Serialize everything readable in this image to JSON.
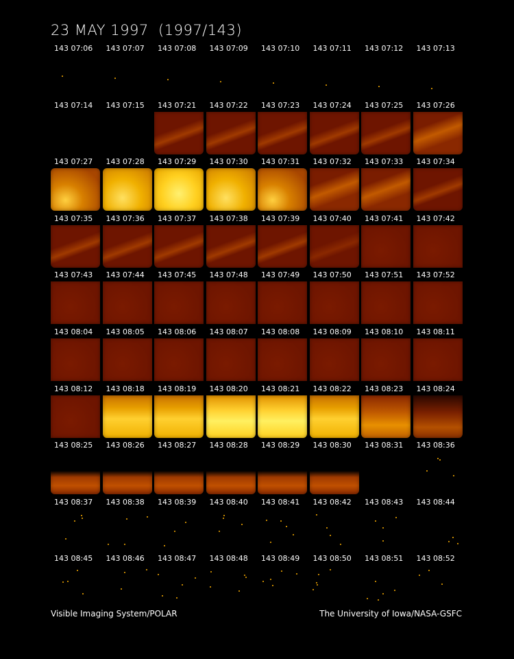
{
  "title": "23 MAY 1997  (1997/143)",
  "footer": {
    "left": "Visible Imaging System/POLAR",
    "right": "The University of Iowa/NASA-GSFC"
  },
  "colors": {
    "dark": "#6e1500",
    "mid": "#b34a00",
    "bright": "#f2b400",
    "very_bright": "#ffe030",
    "dot": "#ffb000"
  },
  "frames": [
    {
      "label": "143 07:06",
      "type": "dot"
    },
    {
      "label": "143 07:07",
      "type": "dot"
    },
    {
      "label": "143 07:08",
      "type": "dot"
    },
    {
      "label": "143 07:09",
      "type": "dot"
    },
    {
      "label": "143 07:10",
      "type": "dot"
    },
    {
      "label": "143 07:11",
      "type": "dot"
    },
    {
      "label": "143 07:12",
      "type": "dot"
    },
    {
      "label": "143 07:13",
      "type": "dot"
    },
    {
      "label": "143 07:14",
      "type": "empty"
    },
    {
      "label": "143 07:15",
      "type": "empty"
    },
    {
      "label": "143 07:21",
      "type": "arc-dim"
    },
    {
      "label": "143 07:22",
      "type": "arc-dim"
    },
    {
      "label": "143 07:23",
      "type": "arc-dim"
    },
    {
      "label": "143 07:24",
      "type": "arc-dim"
    },
    {
      "label": "143 07:25",
      "type": "arc-dim"
    },
    {
      "label": "143 07:26",
      "type": "arc-mid"
    },
    {
      "label": "143 07:27",
      "type": "bright-orange"
    },
    {
      "label": "143 07:28",
      "type": "bright"
    },
    {
      "label": "143 07:29",
      "type": "very-bright"
    },
    {
      "label": "143 07:30",
      "type": "bright"
    },
    {
      "label": "143 07:31",
      "type": "bright-orange"
    },
    {
      "label": "143 07:32",
      "type": "arc-mid"
    },
    {
      "label": "143 07:33",
      "type": "arc-mid"
    },
    {
      "label": "143 07:34",
      "type": "arc-dim"
    },
    {
      "label": "143 07:35",
      "type": "arc-dim"
    },
    {
      "label": "143 07:36",
      "type": "arc-dim"
    },
    {
      "label": "143 07:37",
      "type": "arc-dim"
    },
    {
      "label": "143 07:38",
      "type": "arc-dim"
    },
    {
      "label": "143 07:39",
      "type": "arc-dim"
    },
    {
      "label": "143 07:40",
      "type": "arc-faint"
    },
    {
      "label": "143 07:41",
      "type": "dark"
    },
    {
      "label": "143 07:42",
      "type": "dark"
    },
    {
      "label": "143 07:43",
      "type": "dark"
    },
    {
      "label": "143 07:44",
      "type": "dark"
    },
    {
      "label": "143 07:45",
      "type": "dark"
    },
    {
      "label": "143 07:48",
      "type": "dark"
    },
    {
      "label": "143 07:49",
      "type": "dark"
    },
    {
      "label": "143 07:50",
      "type": "dark"
    },
    {
      "label": "143 07:51",
      "type": "dark"
    },
    {
      "label": "143 07:52",
      "type": "dark"
    },
    {
      "label": "143 08:04",
      "type": "dark"
    },
    {
      "label": "143 08:05",
      "type": "dark"
    },
    {
      "label": "143 08:06",
      "type": "dark"
    },
    {
      "label": "143 08:07",
      "type": "dark"
    },
    {
      "label": "143 08:08",
      "type": "dark"
    },
    {
      "label": "143 08:09",
      "type": "dark"
    },
    {
      "label": "143 08:10",
      "type": "dark"
    },
    {
      "label": "143 08:11",
      "type": "dark"
    },
    {
      "label": "143 08:12",
      "type": "dark"
    },
    {
      "label": "143 08:18",
      "type": "band-bright"
    },
    {
      "label": "143 08:19",
      "type": "band-bright"
    },
    {
      "label": "143 08:20",
      "type": "band-very"
    },
    {
      "label": "143 08:21",
      "type": "band-very"
    },
    {
      "label": "143 08:22",
      "type": "band-bright"
    },
    {
      "label": "143 08:23",
      "type": "band-mid"
    },
    {
      "label": "143 08:24",
      "type": "band-dark"
    },
    {
      "label": "143 08:25",
      "type": "limb"
    },
    {
      "label": "143 08:26",
      "type": "limb"
    },
    {
      "label": "143 08:27",
      "type": "limb"
    },
    {
      "label": "143 08:28",
      "type": "limb"
    },
    {
      "label": "143 08:29",
      "type": "limb"
    },
    {
      "label": "143 08:30",
      "type": "limb"
    },
    {
      "label": "143 08:31",
      "type": "empty"
    },
    {
      "label": "143 08:36",
      "type": "stars"
    },
    {
      "label": "143 08:37",
      "type": "stars"
    },
    {
      "label": "143 08:38",
      "type": "stars"
    },
    {
      "label": "143 08:39",
      "type": "stars"
    },
    {
      "label": "143 08:40",
      "type": "stars"
    },
    {
      "label": "143 08:41",
      "type": "stars"
    },
    {
      "label": "143 08:42",
      "type": "stars"
    },
    {
      "label": "143 08:43",
      "type": "stars"
    },
    {
      "label": "143 08:44",
      "type": "stars"
    },
    {
      "label": "143 08:45",
      "type": "stars"
    },
    {
      "label": "143 08:46",
      "type": "stars"
    },
    {
      "label": "143 08:47",
      "type": "stars"
    },
    {
      "label": "143 08:48",
      "type": "stars"
    },
    {
      "label": "143 08:49",
      "type": "stars"
    },
    {
      "label": "143 08:50",
      "type": "stars"
    },
    {
      "label": "143 08:51",
      "type": "stars"
    },
    {
      "label": "143 08:52",
      "type": "stars"
    }
  ]
}
